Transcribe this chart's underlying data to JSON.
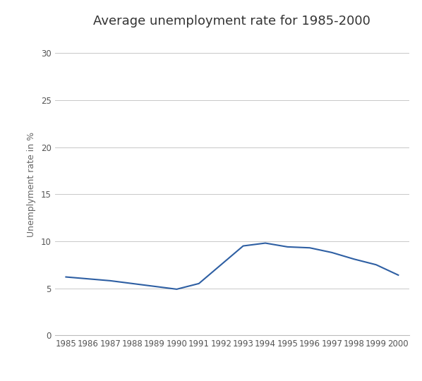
{
  "years": [
    1985,
    1986,
    1987,
    1988,
    1989,
    1990,
    1991,
    1992,
    1993,
    1994,
    1995,
    1996,
    1997,
    1998,
    1999,
    2000
  ],
  "values": [
    6.2,
    6.0,
    5.8,
    5.5,
    5.2,
    4.9,
    5.5,
    7.5,
    9.5,
    9.8,
    9.4,
    9.3,
    8.8,
    8.1,
    7.5,
    6.4
  ],
  "title": "Average unemployment rate for 1985-2000",
  "ylabel": "Unemplyment rate in %",
  "ylim": [
    0,
    32
  ],
  "yticks": [
    0,
    5,
    10,
    15,
    20,
    25,
    30
  ],
  "line_color": "#2E5FA3",
  "line_width": 1.5,
  "background_color": "#ffffff",
  "grid_color": "#c8c8c8",
  "title_fontsize": 13,
  "label_fontsize": 9,
  "tick_fontsize": 8.5
}
